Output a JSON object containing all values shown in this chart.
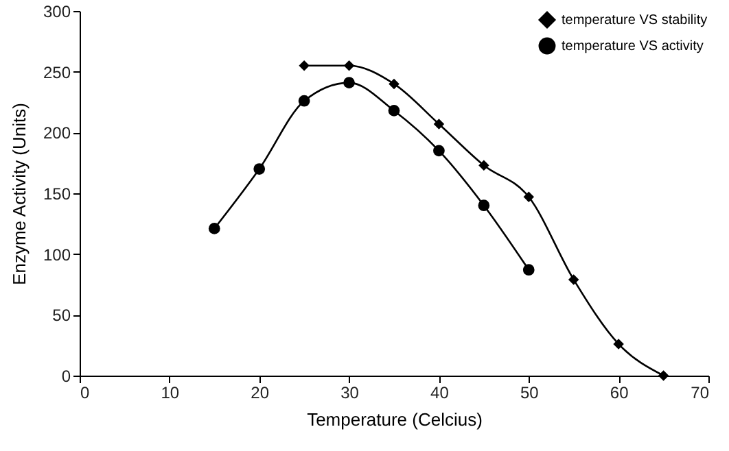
{
  "chart_data": {
    "type": "line",
    "xlabel": "Temperature (Celcius)",
    "ylabel": "Enzyme Activity (Units)",
    "xlim": [
      0,
      70
    ],
    "xticks": [
      0,
      10,
      20,
      30,
      40,
      50,
      60,
      70
    ],
    "ylim": [
      0,
      300
    ],
    "yticks": [
      0,
      50,
      100,
      150,
      200,
      250,
      300
    ],
    "grid": false,
    "legend": "top right",
    "line_style": "solid",
    "series": [
      {
        "name": "temperature VS stability",
        "color": "#000000",
        "marker": "diamond",
        "x": [
          25,
          30,
          35,
          40,
          45,
          50,
          55,
          60,
          65
        ],
        "values": [
          255,
          255,
          240,
          207,
          173,
          147,
          79,
          26,
          0
        ]
      },
      {
        "name": "temperature VS activity",
        "color": "#000000",
        "marker": "circle",
        "x": [
          15,
          20,
          25,
          30,
          35,
          40,
          45,
          50
        ],
        "values": [
          121,
          170,
          226,
          241,
          218,
          185,
          140,
          87
        ]
      }
    ]
  }
}
